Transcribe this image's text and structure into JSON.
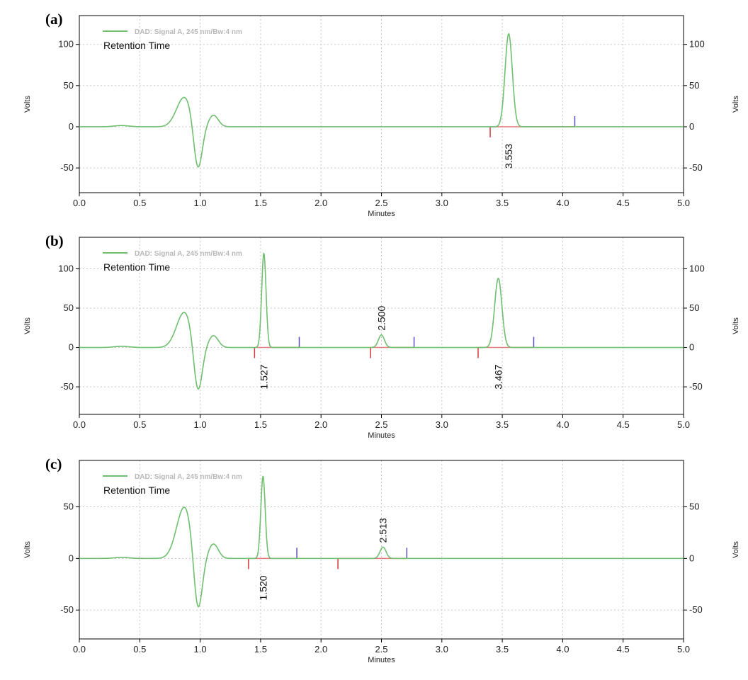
{
  "colors": {
    "trace": "#6fbf6f",
    "baseline": "#e07a7a",
    "start_marker": "#d43a3a",
    "end_marker": "#5a4fc0",
    "grid": "#c8c8c8",
    "frame": "#000000"
  },
  "chart_data": [
    {
      "type": "line",
      "panel_label": "(a)",
      "legend": "DAD: Signal A, 245 nm/Bw:4 nm",
      "annotation": "Retention Time",
      "xlabel": "Minutes",
      "ylabel_left": "Volts",
      "ylabel_right": "Volts",
      "xlim": [
        0.0,
        5.0
      ],
      "xticks": [
        "0.0",
        "0.5",
        "1.0",
        "1.5",
        "2.0",
        "2.5",
        "3.0",
        "3.5",
        "4.0",
        "4.5",
        "5.0"
      ],
      "ylim": [
        -80,
        135
      ],
      "yticks": [
        -50,
        0,
        50,
        100
      ],
      "grid": true,
      "solvent_front": [
        {
          "t": 0.87,
          "h": 36,
          "w": 0.065
        },
        {
          "t": 0.98,
          "h": -57,
          "w": 0.035
        },
        {
          "t": 1.11,
          "h": 14,
          "w": 0.04
        },
        {
          "t": 0.35,
          "h": 1.5,
          "w": 0.06
        }
      ],
      "peaks": [
        {
          "rt": 3.553,
          "label": "3.553",
          "height": 113,
          "width": 0.03,
          "start": 3.4,
          "end": 4.1
        }
      ]
    },
    {
      "type": "line",
      "panel_label": "(b)",
      "legend": "DAD: Signal A, 245 nm/Bw:4 nm",
      "annotation": "Retention Time",
      "xlabel": "Minutes",
      "ylabel_left": "Volts",
      "ylabel_right": "Volts",
      "xlim": [
        0.0,
        5.0
      ],
      "xticks": [
        "0.0",
        "0.5",
        "1.0",
        "1.5",
        "2.0",
        "2.5",
        "3.0",
        "3.5",
        "4.0",
        "4.5",
        "5.0"
      ],
      "ylim": [
        -85,
        140
      ],
      "yticks": [
        -50,
        0,
        50,
        100
      ],
      "grid": true,
      "solvent_front": [
        {
          "t": 0.87,
          "h": 45,
          "w": 0.065
        },
        {
          "t": 0.98,
          "h": -63,
          "w": 0.035
        },
        {
          "t": 1.11,
          "h": 15,
          "w": 0.04
        },
        {
          "t": 0.35,
          "h": 1.5,
          "w": 0.06
        }
      ],
      "peaks": [
        {
          "rt": 1.527,
          "label": "1.527",
          "height": 120,
          "width": 0.018,
          "start": 1.45,
          "end": 1.82
        },
        {
          "rt": 2.5,
          "label": "2.500",
          "height": 16,
          "width": 0.025,
          "start": 2.41,
          "end": 2.77
        },
        {
          "rt": 3.467,
          "label": "3.467",
          "height": 88,
          "width": 0.03,
          "start": 3.3,
          "end": 3.76
        }
      ]
    },
    {
      "type": "line",
      "panel_label": "(c)",
      "legend": "DAD: Signal A, 245 nm/Bw:4 nm",
      "annotation": "Retention Time",
      "xlabel": "Minutes",
      "ylabel_left": "Volts",
      "ylabel_right": "Volts",
      "xlim": [
        0.0,
        5.0
      ],
      "xticks": [
        "0.0",
        "0.5",
        "1.0",
        "1.5",
        "2.0",
        "2.5",
        "3.0",
        "3.5",
        "4.0",
        "4.5",
        "5.0"
      ],
      "ylim": [
        -78,
        95
      ],
      "yticks": [
        -50,
        0,
        50
      ],
      "grid": true,
      "solvent_front": [
        {
          "t": 0.87,
          "h": 50,
          "w": 0.065
        },
        {
          "t": 0.98,
          "h": -58,
          "w": 0.035
        },
        {
          "t": 1.11,
          "h": 14,
          "w": 0.04
        },
        {
          "t": 0.35,
          "h": 1.0,
          "w": 0.06
        }
      ],
      "peaks": [
        {
          "rt": 1.52,
          "label": "1.520",
          "height": 80,
          "width": 0.018,
          "start": 1.4,
          "end": 1.8
        },
        {
          "rt": 2.513,
          "label": "2.513",
          "height": 11,
          "width": 0.025,
          "start": 2.14,
          "end": 2.71
        }
      ]
    }
  ]
}
